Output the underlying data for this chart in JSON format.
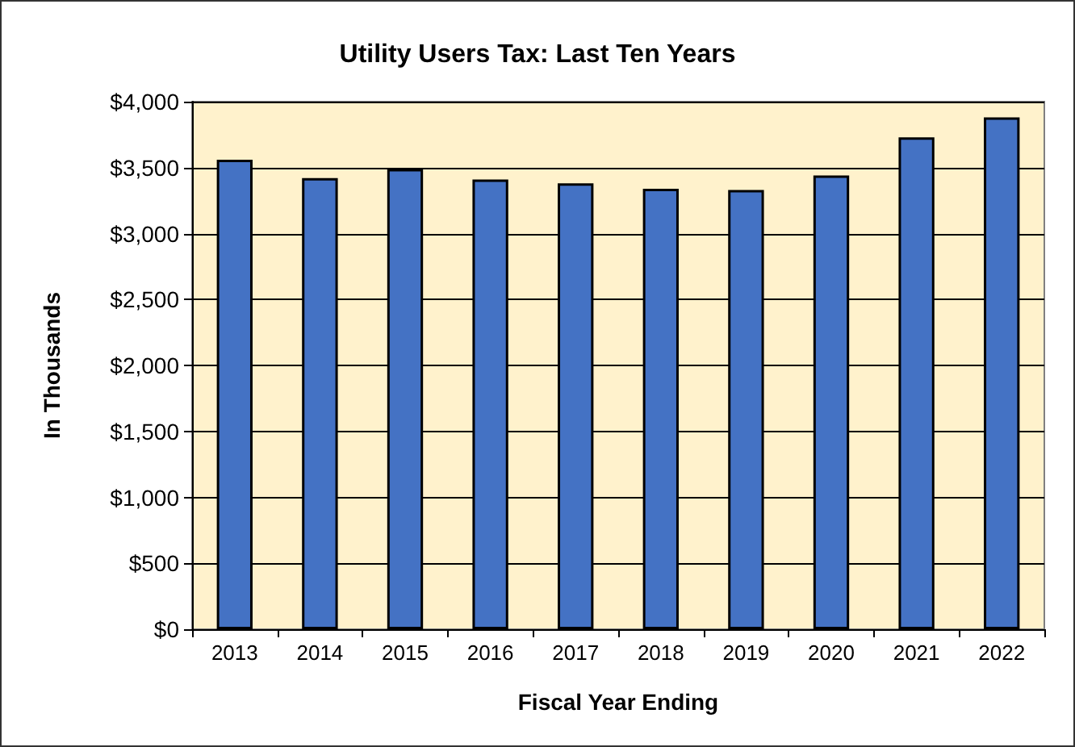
{
  "chart_data": {
    "type": "bar",
    "title": "Utility Users Tax: Last Ten Years",
    "xlabel": "Fiscal Year Ending",
    "ylabel": "In Thousands",
    "categories": [
      "2013",
      "2014",
      "2015",
      "2016",
      "2017",
      "2018",
      "2019",
      "2020",
      "2021",
      "2022"
    ],
    "values": [
      3560,
      3420,
      3490,
      3410,
      3380,
      3340,
      3330,
      3440,
      3730,
      3880
    ],
    "color": "#4472c4",
    "ylim": [
      0,
      4000
    ],
    "yticks": [
      {
        "value": 0,
        "label": "$0"
      },
      {
        "value": 500,
        "label": "$500"
      },
      {
        "value": 1000,
        "label": "$1,000"
      },
      {
        "value": 1500,
        "label": "$1,500"
      },
      {
        "value": 2000,
        "label": "$2,000"
      },
      {
        "value": 2500,
        "label": "$2,500"
      },
      {
        "value": 3000,
        "label": "$3,000"
      },
      {
        "value": 3500,
        "label": "$3,500"
      },
      {
        "value": 4000,
        "label": "$4,000"
      }
    ],
    "grid": "y"
  }
}
